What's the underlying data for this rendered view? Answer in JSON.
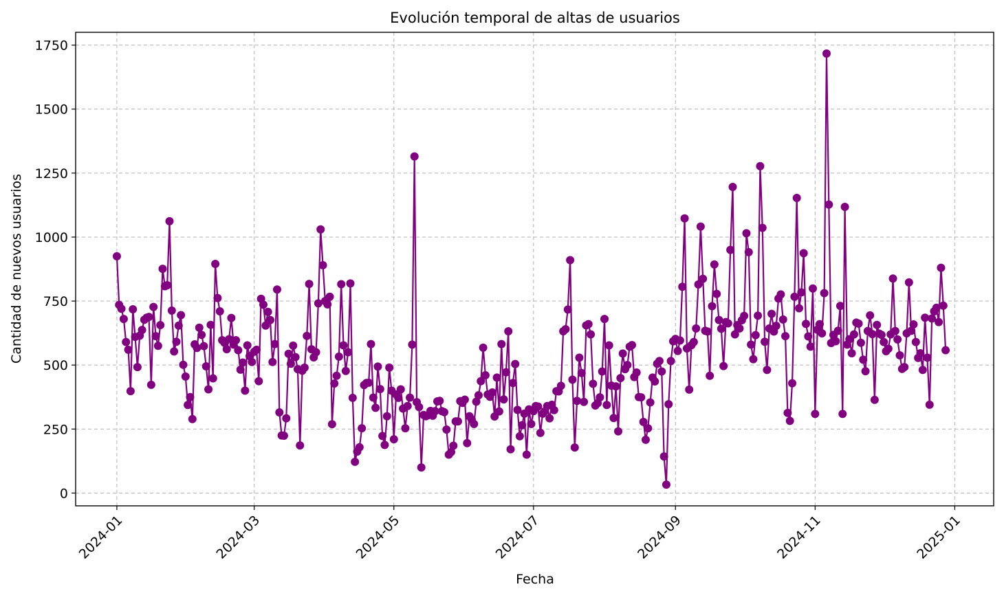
{
  "chart_data": {
    "type": "line",
    "title": "Evolución temporal de altas de usuarios",
    "xlabel": "Fecha",
    "ylabel": "Cantidad de nuevos usuarios",
    "xlim": [
      "2023-12-14",
      "2025-01-18"
    ],
    "ylim": [
      -50,
      1800
    ],
    "x_ticks": [
      "2024-01-01",
      "2024-03-01",
      "2024-05-01",
      "2024-07-01",
      "2024-09-01",
      "2024-11-01",
      "2025-01-01"
    ],
    "x_tick_labels": [
      "2024-01",
      "2024-03",
      "2024-05",
      "2024-07",
      "2024-09",
      "2024-11",
      "2025-01"
    ],
    "y_ticks": [
      0,
      250,
      500,
      750,
      1000,
      1250,
      1500,
      1750
    ],
    "y_tick_labels": [
      "0",
      "250",
      "500",
      "750",
      "1000",
      "1250",
      "1500",
      "1750"
    ],
    "grid": true,
    "marker": "circle",
    "colors": {
      "series": "#800080",
      "grid": "#b0b0b0",
      "axis": "#000000"
    },
    "series": [
      {
        "name": "",
        "x_start": "2024-01-01",
        "x_step_days": 1,
        "y": [
          925,
          735,
          720,
          680,
          590,
          560,
          398,
          718,
          610,
          492,
          615,
          637,
          677,
          685,
          688,
          423,
          727,
          613,
          575,
          656,
          876,
          808,
          812,
          1062,
          713,
          553,
          591,
          654,
          695,
          501,
          455,
          344,
          375,
          289,
          581,
          567,
          646,
          618,
          574,
          495,
          405,
          657,
          448,
          895,
          762,
          710,
          597,
          587,
          562,
          601,
          684,
          580,
          597,
          558,
          482,
          510,
          400,
          577,
          535,
          512,
          552,
          560,
          437,
          759,
          736,
          654,
          708,
          676,
          512,
          582,
          795,
          315,
          225,
          224,
          292,
          544,
          505,
          576,
          531,
          484,
          186,
          478,
          490,
          614,
          817,
          562,
          530,
          550,
          741,
          1030,
          890,
          750,
          737,
          767,
          269,
          428,
          458,
          533,
          816,
          577,
          477,
          550,
          819,
          372,
          122,
          162,
          179,
          253,
          422,
          430,
          431,
          582,
          373,
          333,
          494,
          406,
          223,
          188,
          300,
          490,
          400,
          210,
          385,
          372,
          405,
          330,
          253,
          340,
          373,
          580,
          1315,
          355,
          336,
          100,
          305,
          300,
          304,
          321,
          302,
          320,
          358,
          360,
          320,
          316,
          248,
          150,
          160,
          185,
          280,
          280,
          359,
          352,
          365,
          195,
          300,
          287,
          270,
          357,
          382,
          437,
          568,
          460,
          385,
          376,
          393,
          299,
          451,
          319,
          582,
          366,
          472,
          632,
          171,
          430,
          504,
          325,
          222,
          265,
          310,
          150,
          327,
          270,
          320,
          340,
          338,
          235,
          310,
          320,
          340,
          292,
          345,
          324,
          398,
          397,
          419,
          632,
          640,
          717,
          910,
          443,
          178,
          360,
          529,
          469,
          356,
          655,
          660,
          620,
          427,
          342,
          351,
          374,
          475,
          680,
          344,
          577,
          420,
          293,
          417,
          241,
          449,
          545,
          484,
          500,
          572,
          578,
          453,
          471,
          375,
          374,
          278,
          208,
          253,
          354,
          451,
          436,
          505,
          516,
          475,
          143,
          33,
          347,
          516,
          593,
          602,
          555,
          596,
          806,
          1073,
          565,
          404,
          578,
          590,
          643,
          815,
          1041,
          837,
          634,
          631,
          458,
          730,
          893,
          778,
          676,
          642,
          496,
          668,
          663,
          950,
          1196,
          620,
          656,
          643,
          675,
          692,
          1015,
          941,
          580,
          523,
          617,
          693,
          1277,
          1036,
          591,
          481,
          643,
          700,
          631,
          653,
          760,
          776,
          678,
          613,
          313,
          282,
          429,
          767,
          1153,
          722,
          784,
          937,
          661,
          612,
          572,
          799,
          309,
          638,
          660,
          624,
          781,
          1717,
          1127,
          586,
          618,
          593,
          634,
          731,
          309,
          1118,
          580,
          601,
          546,
          620,
          666,
          662,
          587,
          521,
          476,
          633,
          694,
          621,
          364,
          657,
          623,
          618,
          590,
          554,
          564,
          620,
          838,
          633,
          600,
          538,
          485,
          492,
          624,
          823,
          634,
          659,
          590,
          528,
          546,
          481,
          685,
          529,
          345,
          682,
          710,
          724,
          668,
          880,
          732,
          558
        ]
      }
    ]
  }
}
